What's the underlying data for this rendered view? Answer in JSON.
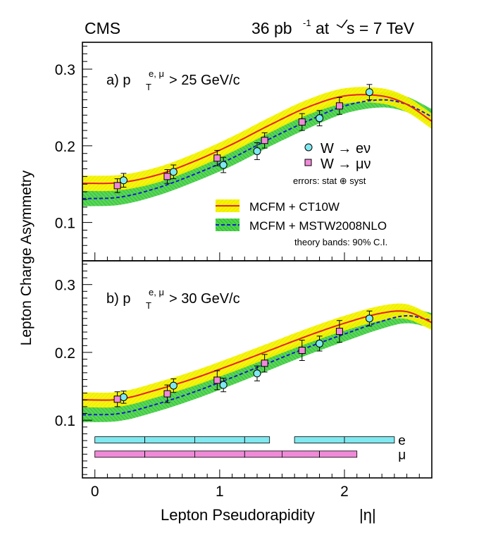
{
  "header": {
    "experiment": "CMS",
    "luminosity": "36 pb",
    "lumi_sup": "-1",
    "energy_pre": "at",
    "energy": "s = 7 TeV"
  },
  "axes": {
    "ylabel": "Lepton Charge Asymmetry",
    "xlabel": "Lepton Pseudorapidity",
    "xlabel_sym": "|η|"
  },
  "legend": {
    "electron": "W → eν",
    "muon": "W → μν",
    "errors_note": "errors: stat ⊕ syst",
    "ct10w": "MCFM + CT10W",
    "mstw": "MCFM + MSTW2008NLO",
    "bands_note": "theory bands: 90% C.I."
  },
  "colors": {
    "ct10w_line": "#e8201c",
    "ct10w_band": "#f5f500",
    "mstw_line": "#1a1ad0",
    "mstw_band": "#33cc33",
    "electron": "#7fe8f0",
    "muon": "#f08ad8"
  },
  "chart_data": [
    {
      "type": "scatter",
      "panel": "a",
      "label_pre": "a)   p",
      "label_sub": "T",
      "label_sup": "e, μ",
      "label_post": " > 25 GeV/c",
      "xlim": [
        -0.1,
        2.7
      ],
      "ylim": [
        0.05,
        0.335
      ],
      "xticks": [
        0,
        1,
        2
      ],
      "yticks": [
        0.1,
        0.2,
        0.3
      ],
      "ytick_labels": [
        "0.1",
        "0.2",
        "0.3"
      ],
      "series": [
        {
          "name": "W → eν",
          "x": [
            0.23,
            0.63,
            1.03,
            1.3,
            1.8,
            2.2
          ],
          "y": [
            0.155,
            0.166,
            0.175,
            0.193,
            0.236,
            0.27
          ],
          "err": [
            0.009,
            0.009,
            0.01,
            0.011,
            0.01,
            0.01
          ]
        },
        {
          "name": "W → μν",
          "x": [
            0.18,
            0.58,
            0.98,
            1.36,
            1.66,
            1.96
          ],
          "y": [
            0.148,
            0.16,
            0.184,
            0.207,
            0.231,
            0.252
          ],
          "err": [
            0.009,
            0.009,
            0.01,
            0.01,
            0.011,
            0.011
          ]
        },
        {
          "name": "MCFM + CT10W",
          "x": [
            -0.1,
            0.2,
            0.5,
            0.8,
            1.1,
            1.4,
            1.7,
            2.0,
            2.3,
            2.5,
            2.7
          ],
          "y": [
            0.151,
            0.152,
            0.162,
            0.18,
            0.202,
            0.227,
            0.25,
            0.265,
            0.265,
            0.254,
            0.232
          ],
          "band": 0.01
        },
        {
          "name": "MCFM + MSTW2008NLO",
          "x": [
            -0.1,
            0.2,
            0.5,
            0.8,
            1.1,
            1.4,
            1.7,
            2.0,
            2.3,
            2.5,
            2.7
          ],
          "y": [
            0.131,
            0.133,
            0.145,
            0.163,
            0.184,
            0.209,
            0.232,
            0.252,
            0.26,
            0.254,
            0.238
          ],
          "band": 0.01
        }
      ]
    },
    {
      "type": "scatter",
      "panel": "b",
      "label_pre": "b)   p",
      "label_sub": "T",
      "label_sup": "e, μ",
      "label_post": " > 30 GeV/c",
      "xlim": [
        -0.1,
        2.7
      ],
      "ylim": [
        0.015,
        0.335
      ],
      "xticks": [
        0,
        1,
        2
      ],
      "xtick_labels": [
        "0",
        "1",
        "2"
      ],
      "yticks": [
        0.1,
        0.2,
        0.3
      ],
      "ytick_labels": [
        "0.1",
        "0.2",
        "0.3"
      ],
      "series": [
        {
          "name": "W → eν",
          "x": [
            0.23,
            0.63,
            1.03,
            1.3,
            1.8,
            2.2
          ],
          "y": [
            0.134,
            0.151,
            0.152,
            0.169,
            0.213,
            0.25
          ],
          "err": [
            0.009,
            0.01,
            0.01,
            0.011,
            0.011,
            0.011
          ]
        },
        {
          "name": "W → μν",
          "x": [
            0.18,
            0.58,
            0.98,
            1.36,
            1.66,
            1.96
          ],
          "y": [
            0.131,
            0.139,
            0.159,
            0.184,
            0.203,
            0.231
          ],
          "err": [
            0.011,
            0.013,
            0.014,
            0.013,
            0.015,
            0.016
          ]
        },
        {
          "name": "MCFM + CT10W",
          "x": [
            -0.1,
            0.2,
            0.5,
            0.8,
            1.1,
            1.4,
            1.7,
            2.0,
            2.3,
            2.5,
            2.7
          ],
          "y": [
            0.13,
            0.131,
            0.145,
            0.162,
            0.182,
            0.203,
            0.224,
            0.243,
            0.258,
            0.26,
            0.244
          ],
          "band": 0.011
        },
        {
          "name": "MCFM + MSTW2008NLO",
          "x": [
            -0.1,
            0.2,
            0.5,
            0.8,
            1.1,
            1.4,
            1.7,
            2.0,
            2.3,
            2.5,
            2.7
          ],
          "y": [
            0.108,
            0.11,
            0.124,
            0.142,
            0.163,
            0.185,
            0.207,
            0.227,
            0.246,
            0.254,
            0.247
          ],
          "band": 0.011
        }
      ],
      "bins": {
        "e": {
          "label": "e",
          "edges": [
            0.0,
            0.4,
            0.8,
            1.2,
            1.4,
            1.6,
            2.0,
            2.4
          ],
          "gap": [
            1.4,
            1.6
          ],
          "y": 0.071
        },
        "mu": {
          "label": "μ",
          "edges": [
            0.0,
            0.4,
            0.8,
            1.2,
            1.5,
            1.8,
            2.1
          ],
          "y": 0.05
        }
      }
    }
  ]
}
